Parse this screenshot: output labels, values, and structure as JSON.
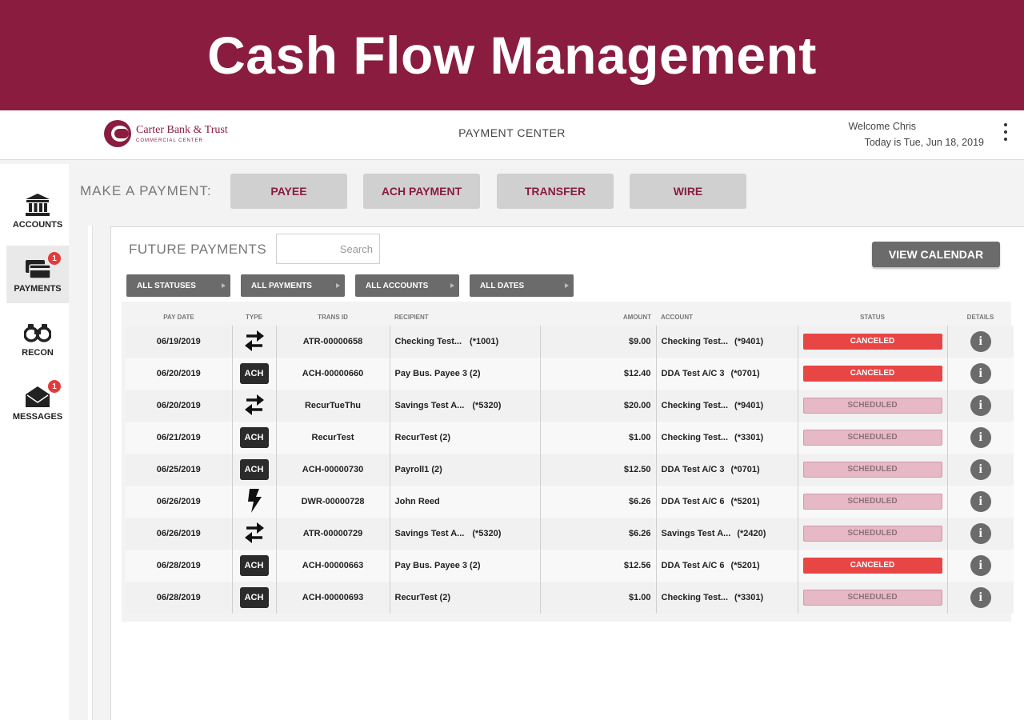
{
  "banner": {
    "title": "Cash Flow Management"
  },
  "header": {
    "logo_name": "Carter Bank & Trust",
    "logo_sub": "COMMERCIAL CENTER",
    "title": "PAYMENT CENTER",
    "welcome": "Welcome Chris",
    "date": "Today is Tue, Jun 18, 2019"
  },
  "sidebar": {
    "items": [
      {
        "label": "ACCOUNTS",
        "icon": "bank-icon"
      },
      {
        "label": "PAYMENTS",
        "icon": "payments-icon",
        "badge": "1"
      },
      {
        "label": "RECON",
        "icon": "binoculars-icon"
      },
      {
        "label": "MESSAGES",
        "icon": "envelope-icon",
        "badge": "1"
      }
    ]
  },
  "make_payment": {
    "label": "MAKE A PAYMENT:",
    "buttons": [
      "PAYEE",
      "ACH PAYMENT",
      "TRANSFER",
      "WIRE"
    ]
  },
  "future_payments": {
    "title": "FUTURE PAYMENTS",
    "search_placeholder": "Search",
    "view_calendar": "VIEW CALENDAR",
    "filters": [
      "ALL STATUSES",
      "ALL PAYMENTS",
      "ALL ACCOUNTS",
      "ALL DATES"
    ]
  },
  "table": {
    "headers": {
      "pay_date": "PAY DATE",
      "type": "TYPE",
      "trans_id": "TRANS ID",
      "recipient": "RECIPIENT",
      "amount": "AMOUNT",
      "account": "ACCOUNT",
      "status": "STATUS",
      "details": "DETAILS"
    },
    "rows": [
      {
        "pay_date": "06/19/2019",
        "type": "transfer",
        "trans_id": "ATR-00000658",
        "recipient": "Checking Test...",
        "recipient_acct": "(*1001)",
        "amount": "$9.00",
        "account": "Checking Test...",
        "account_num": "(*9401)",
        "status": "CANCELED"
      },
      {
        "pay_date": "06/20/2019",
        "type": "ACH",
        "trans_id": "ACH-00000660",
        "recipient": "Pay Bus. Payee 3 (2)",
        "recipient_acct": "",
        "amount": "$12.40",
        "account": "DDA Test A/C 3",
        "account_num": "(*0701)",
        "status": "CANCELED"
      },
      {
        "pay_date": "06/20/2019",
        "type": "transfer",
        "trans_id": "RecurTueThu",
        "recipient": "Savings Test A...",
        "recipient_acct": "(*5320)",
        "amount": "$20.00",
        "account": "Checking Test...",
        "account_num": "(*9401)",
        "status": "SCHEDULED"
      },
      {
        "pay_date": "06/21/2019",
        "type": "ACH",
        "trans_id": "RecurTest",
        "recipient": "RecurTest (2)",
        "recipient_acct": "",
        "amount": "$1.00",
        "account": "Checking Test...",
        "account_num": "(*3301)",
        "status": "SCHEDULED"
      },
      {
        "pay_date": "06/25/2019",
        "type": "ACH",
        "trans_id": "ACH-00000730",
        "recipient": "Payroll1 (2)",
        "recipient_acct": "",
        "amount": "$12.50",
        "account": "DDA Test A/C 3",
        "account_num": "(*0701)",
        "status": "SCHEDULED"
      },
      {
        "pay_date": "06/26/2019",
        "type": "wire",
        "trans_id": "DWR-00000728",
        "recipient": "John Reed",
        "recipient_acct": "",
        "amount": "$6.26",
        "account": "DDA Test A/C 6",
        "account_num": "(*5201)",
        "status": "SCHEDULED"
      },
      {
        "pay_date": "06/26/2019",
        "type": "transfer",
        "trans_id": "ATR-00000729",
        "recipient": "Savings Test A...",
        "recipient_acct": "(*5320)",
        "amount": "$6.26",
        "account": "Savings Test A...",
        "account_num": "(*2420)",
        "status": "SCHEDULED"
      },
      {
        "pay_date": "06/28/2019",
        "type": "ACH",
        "trans_id": "ACH-00000663",
        "recipient": "Pay Bus. Payee 3 (2)",
        "recipient_acct": "",
        "amount": "$12.56",
        "account": "DDA Test A/C 6",
        "account_num": "(*5201)",
        "status": "CANCELED"
      },
      {
        "pay_date": "06/28/2019",
        "type": "ACH",
        "trans_id": "ACH-00000693",
        "recipient": "RecurTest (2)",
        "recipient_acct": "",
        "amount": "$1.00",
        "account": "Checking Test...",
        "account_num": "(*3301)",
        "status": "SCHEDULED"
      }
    ]
  },
  "colors": {
    "brand": "#8a1c40",
    "canceled": "#e84545",
    "scheduled": "#e7b9c6"
  }
}
